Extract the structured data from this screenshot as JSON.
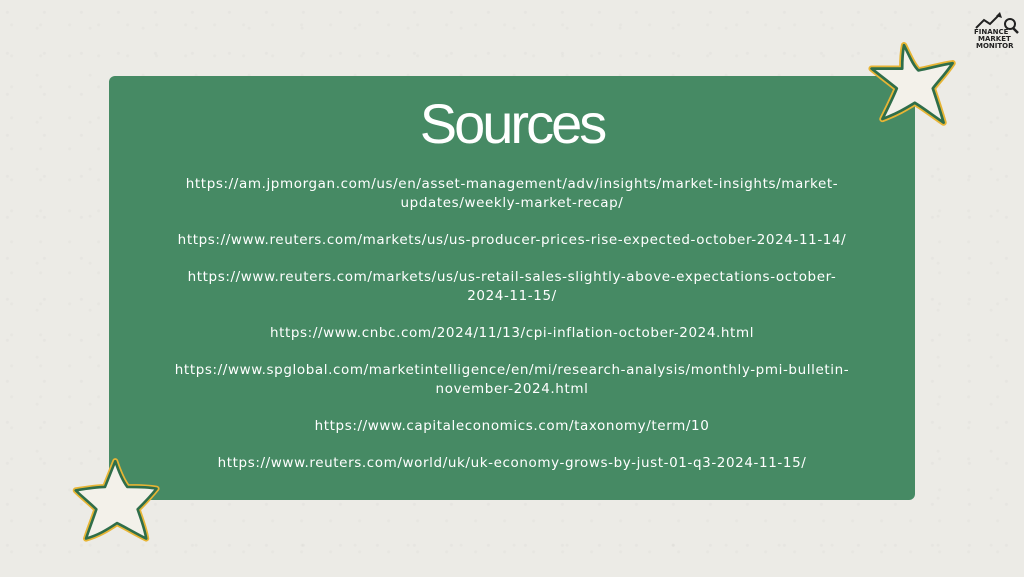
{
  "slide": {
    "title": "Sources",
    "sources": [
      {
        "line1": "https://am.jpmorgan.com/us/en/asset-management/adv/insights/market-insights/market-",
        "line2": "updates/weekly-market-recap/"
      },
      {
        "line1": "https://www.reuters.com/markets/us/us-producer-prices-rise-expected-october-2024-11-14/",
        "line2": ""
      },
      {
        "line1": "https://www.reuters.com/markets/us/us-retail-sales-slightly-above-expectations-october-",
        "line2": "2024-11-15/"
      },
      {
        "line1": "https://www.cnbc.com/2024/11/13/cpi-inflation-october-2024.html",
        "line2": ""
      },
      {
        "line1": "https://www.spglobal.com/marketintelligence/en/mi/research-analysis/monthly-pmi-bulletin-",
        "line2": "november-2024.html"
      },
      {
        "line1": "https://www.capitaleconomics.com/taxonomy/term/10",
        "line2": ""
      },
      {
        "line1": "https://www.reuters.com/world/uk/uk-economy-grows-by-just-01-q3-2024-11-15/",
        "line2": ""
      }
    ]
  },
  "logo": {
    "line1": "FINANCE",
    "line2": "MARKET",
    "line3": "MONITOR"
  },
  "colors": {
    "background": "#ecebe6",
    "card": "#468a64",
    "star_fill": "#f3f1ea",
    "star_stroke_inner": "#2f6e4a",
    "star_stroke_outer": "#e7b535"
  }
}
